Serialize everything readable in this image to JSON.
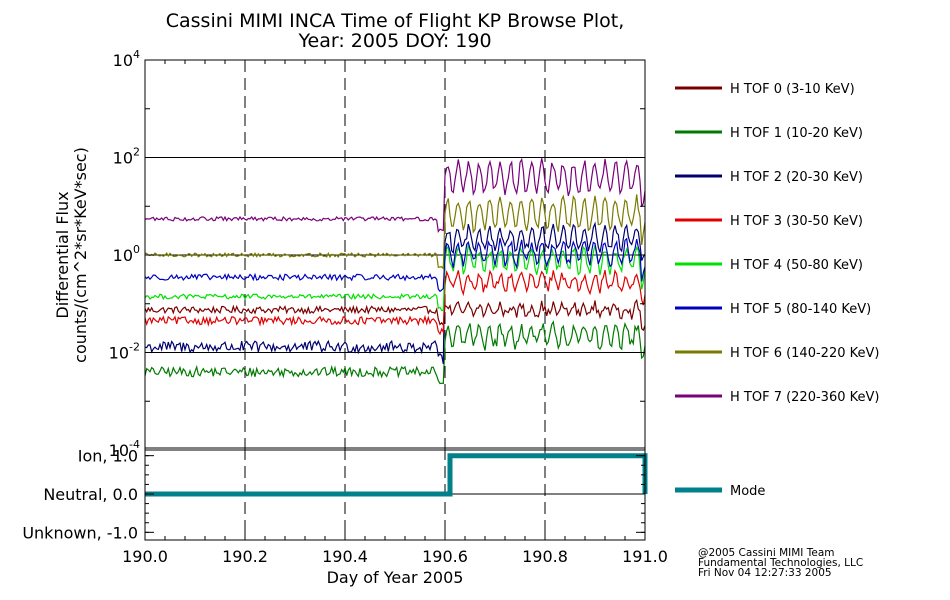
{
  "chart_data": {
    "type": "line",
    "title_line1": "Cassini MIMI INCA Time of Flight KP Browse Plot,",
    "title_line2": "Year: 2005 DOY: 190",
    "xlabel": "Day of Year 2005",
    "xlim": [
      190.0,
      191.0
    ],
    "x_ticks": [
      {
        "value": 190.0,
        "label": "190.0"
      },
      {
        "value": 190.2,
        "label": "190.2"
      },
      {
        "value": 190.4,
        "label": "190.4"
      },
      {
        "value": 190.6,
        "label": "190.6"
      },
      {
        "value": 190.8,
        "label": "190.8"
      },
      {
        "value": 191.0,
        "label": "191.0"
      }
    ],
    "dashed_x_gridlines": [
      190.2,
      190.4,
      190.6,
      190.8
    ],
    "flux_panel": {
      "ylabel_line1": "Differential Flux",
      "ylabel_line2": "counts/(cm^2*sr*KeV*sec)",
      "yscale": "log",
      "ylim": [
        0.0001,
        10000
      ],
      "y_tick_labels": [
        {
          "base": "10",
          "exp": "4",
          "value": 10000
        },
        {
          "base": "10",
          "exp": "2",
          "value": 100
        },
        {
          "base": "10",
          "exp": "0",
          "value": 1
        },
        {
          "base": "10",
          "exp": "-2",
          "value": 0.01
        },
        {
          "base": "10",
          "exp": "-4",
          "value": 0.0001
        }
      ],
      "solid_y_gridlines": [
        100,
        1,
        0.01
      ],
      "transition_doy": 190.6,
      "series": [
        {
          "name": "H TOF 0 (3-10 KeV)",
          "color": "#7a0000",
          "before": 0.075,
          "after": 0.075,
          "noise_before": 0.07,
          "noise_after": 0.1,
          "osc_after": 0.1
        },
        {
          "name": "H TOF 1 (10-20 KeV)",
          "color": "#007a00",
          "before": 0.004,
          "after": 0.022,
          "noise_before": 0.1,
          "noise_after": 0.12,
          "osc_after": 0.2
        },
        {
          "name": "H TOF 2 (20-30 KeV)",
          "color": "#00006e",
          "before": 0.013,
          "after": 2.2,
          "noise_before": 0.12,
          "noise_after": 0.1,
          "osc_after": 0.22
        },
        {
          "name": "H TOF 3 (30-50 KeV)",
          "color": "#e00000",
          "before": 0.045,
          "after": 0.28,
          "noise_before": 0.08,
          "noise_after": 0.1,
          "osc_after": 0.15
        },
        {
          "name": "H TOF 4 (50-80 KeV)",
          "color": "#00e000",
          "before": 0.14,
          "after": 0.8,
          "noise_before": 0.05,
          "noise_after": 0.1,
          "osc_after": 0.22
        },
        {
          "name": "H TOF 5 (80-140 KeV)",
          "color": "#0000c0",
          "before": 0.35,
          "after": 1.1,
          "noise_before": 0.06,
          "noise_after": 0.1,
          "osc_after": 0.22
        },
        {
          "name": "H TOF 6 (140-220 KeV)",
          "color": "#7a7a00",
          "before": 1.0,
          "after": 7.0,
          "noise_before": 0.04,
          "noise_after": 0.1,
          "osc_after": 0.3
        },
        {
          "name": "H TOF 7 (220-360 KeV)",
          "color": "#7a007a",
          "before": 5.5,
          "after": 40,
          "noise_before": 0.04,
          "noise_after": 0.1,
          "osc_after": 0.3
        }
      ]
    },
    "mode_panel": {
      "ylim": [
        -1.2,
        1.2
      ],
      "y_tick_labels": [
        {
          "label": "Ion, 1.0",
          "value": 1.0
        },
        {
          "label": "Neutral, 0.0",
          "value": 0.0
        },
        {
          "label": "Unknown, -1.0",
          "value": -1.0
        }
      ],
      "series": {
        "name": "Mode",
        "color": "#00808a",
        "x": [
          190.0,
          190.61,
          190.61,
          191.0,
          191.0
        ],
        "y": [
          0.0,
          0.0,
          1.0,
          1.0,
          0.0
        ]
      }
    },
    "credits": [
      "@2005 Cassini MIMI Team",
      "Fundamental Technologies, LLC",
      "Fri Nov 04 12:27:33 2005"
    ]
  }
}
